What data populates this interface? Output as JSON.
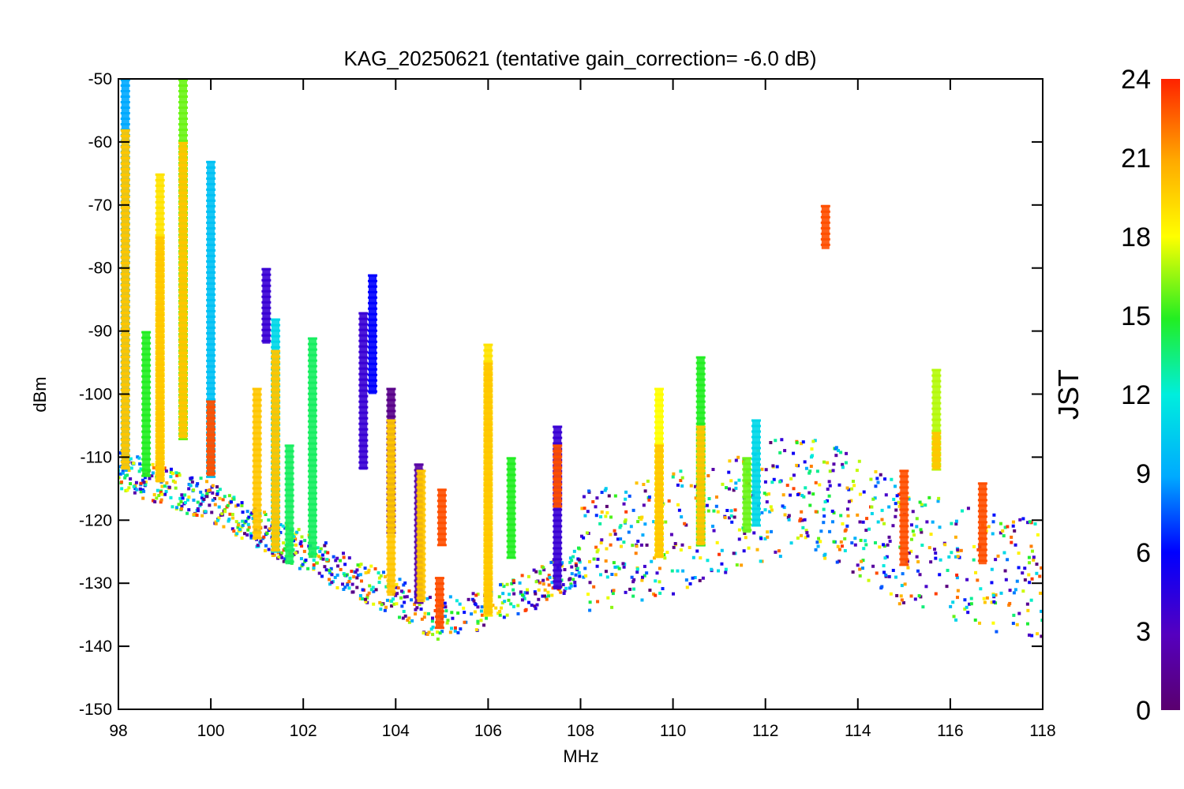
{
  "chart_data": {
    "type": "scatter",
    "title": "KAG_20250621 (tentative gain_correction= -6.0 dB)",
    "xlabel": "MHz",
    "ylabel": "dBm",
    "xlim": [
      98,
      118
    ],
    "ylim": [
      -150,
      -50
    ],
    "x_ticks": [
      {
        "value": 98,
        "label": "98"
      },
      {
        "value": 100,
        "label": "100"
      },
      {
        "value": 102,
        "label": "102"
      },
      {
        "value": 104,
        "label": "104"
      },
      {
        "value": 106,
        "label": "106"
      },
      {
        "value": 108,
        "label": "108"
      },
      {
        "value": 110,
        "label": "110"
      },
      {
        "value": 112,
        "label": "112"
      },
      {
        "value": 114,
        "label": "114"
      },
      {
        "value": 116,
        "label": "116"
      },
      {
        "value": 118,
        "label": "118"
      }
    ],
    "y_ticks": [
      {
        "value": -50,
        "label": "-50"
      },
      {
        "value": -60,
        "label": "-60"
      },
      {
        "value": -70,
        "label": "-70"
      },
      {
        "value": -80,
        "label": "-80"
      },
      {
        "value": -90,
        "label": "-90"
      },
      {
        "value": -100,
        "label": "-100"
      },
      {
        "value": -110,
        "label": "-110"
      },
      {
        "value": -120,
        "label": "-120"
      },
      {
        "value": -130,
        "label": "-130"
      },
      {
        "value": -140,
        "label": "-140"
      },
      {
        "value": -150,
        "label": "-150"
      }
    ],
    "grid": false,
    "colorbar": {
      "title": "JST",
      "range": [
        0,
        24
      ],
      "colormap": "rainbow",
      "ticks": [
        {
          "value": 0,
          "label": "0"
        },
        {
          "value": 3,
          "label": "3"
        },
        {
          "value": 6,
          "label": "6"
        },
        {
          "value": 9,
          "label": "9"
        },
        {
          "value": 12,
          "label": "12"
        },
        {
          "value": 15,
          "label": "15"
        },
        {
          "value": 18,
          "label": "18"
        },
        {
          "value": 21,
          "label": "21"
        },
        {
          "value": 24,
          "label": "24"
        }
      ]
    },
    "noise_floor": [
      {
        "x": 98.0,
        "y": -113
      },
      {
        "x": 100.0,
        "y": -118
      },
      {
        "x": 102.0,
        "y": -126
      },
      {
        "x": 104.0,
        "y": -133
      },
      {
        "x": 104.9,
        "y": -137
      },
      {
        "x": 105.2,
        "y": -136
      },
      {
        "x": 106.0,
        "y": -135
      },
      {
        "x": 107.0,
        "y": -132
      },
      {
        "x": 108.0,
        "y": -128
      },
      {
        "x": 109.0,
        "y": -127
      },
      {
        "x": 110.0,
        "y": -125
      },
      {
        "x": 111.0,
        "y": -123
      },
      {
        "x": 112.0,
        "y": -120
      },
      {
        "x": 113.0,
        "y": -118
      },
      {
        "x": 114.0,
        "y": -123
      },
      {
        "x": 115.0,
        "y": -127
      },
      {
        "x": 116.0,
        "y": -129
      },
      {
        "x": 117.0,
        "y": -131
      },
      {
        "x": 118.0,
        "y": -132
      }
    ],
    "peaks": [
      {
        "x": 98.15,
        "y_top": -50,
        "y_bottom": -112,
        "jst": 9
      },
      {
        "x": 98.15,
        "y_top": -58,
        "y_bottom": -112,
        "jst": 20
      },
      {
        "x": 98.6,
        "y_top": -90,
        "y_bottom": -113,
        "jst": 15
      },
      {
        "x": 98.9,
        "y_top": -65,
        "y_bottom": -114,
        "jst": 19
      },
      {
        "x": 98.9,
        "y_top": -75,
        "y_bottom": -114,
        "jst": 20
      },
      {
        "x": 99.4,
        "y_top": -50,
        "y_bottom": -107,
        "jst": 16
      },
      {
        "x": 99.4,
        "y_top": -60,
        "y_bottom": -107,
        "jst": 20
      },
      {
        "x": 100.0,
        "y_top": -63,
        "y_bottom": -113,
        "jst": 10
      },
      {
        "x": 100.0,
        "y_top": -101,
        "y_bottom": -113,
        "jst": 23
      },
      {
        "x": 101.0,
        "y_top": -99,
        "y_bottom": -123,
        "jst": 20
      },
      {
        "x": 101.2,
        "y_top": -80,
        "y_bottom": -92,
        "jst": 4
      },
      {
        "x": 101.4,
        "y_top": -88,
        "y_bottom": -125,
        "jst": 11
      },
      {
        "x": 101.4,
        "y_top": -93,
        "y_bottom": -125,
        "jst": 20
      },
      {
        "x": 101.7,
        "y_top": -108,
        "y_bottom": -127,
        "jst": 14
      },
      {
        "x": 102.2,
        "y_top": -91,
        "y_bottom": -126,
        "jst": 14
      },
      {
        "x": 103.3,
        "y_top": -87,
        "y_bottom": -112,
        "jst": 4
      },
      {
        "x": 103.5,
        "y_top": -81,
        "y_bottom": -100,
        "jst": 6
      },
      {
        "x": 103.9,
        "y_top": -99,
        "y_bottom": -122,
        "jst": 1
      },
      {
        "x": 103.9,
        "y_top": -104,
        "y_bottom": -132,
        "jst": 20
      },
      {
        "x": 104.5,
        "y_top": -111,
        "y_bottom": -133,
        "jst": 2
      },
      {
        "x": 104.55,
        "y_top": -112,
        "y_bottom": -133,
        "jst": 20
      },
      {
        "x": 105.0,
        "y_top": -115,
        "y_bottom": -124,
        "jst": 23
      },
      {
        "x": 104.95,
        "y_top": -129,
        "y_bottom": -137,
        "jst": 23
      },
      {
        "x": 106.0,
        "y_top": -92,
        "y_bottom": -135,
        "jst": 19
      },
      {
        "x": 106.0,
        "y_top": -95,
        "y_bottom": -135,
        "jst": 20
      },
      {
        "x": 106.5,
        "y_top": -110,
        "y_bottom": -126,
        "jst": 15
      },
      {
        "x": 107.5,
        "y_top": -105,
        "y_bottom": -131,
        "jst": 4
      },
      {
        "x": 107.5,
        "y_top": -108,
        "y_bottom": -118,
        "jst": 23
      },
      {
        "x": 109.7,
        "y_top": -99,
        "y_bottom": -126,
        "jst": 18
      },
      {
        "x": 109.7,
        "y_top": -108,
        "y_bottom": -126,
        "jst": 20
      },
      {
        "x": 110.6,
        "y_top": -94,
        "y_bottom": -124,
        "jst": 15
      },
      {
        "x": 110.6,
        "y_top": -105,
        "y_bottom": -124,
        "jst": 20
      },
      {
        "x": 111.6,
        "y_top": -110,
        "y_bottom": -122,
        "jst": 16
      },
      {
        "x": 111.8,
        "y_top": -104,
        "y_bottom": -121,
        "jst": 11
      },
      {
        "x": 113.3,
        "y_top": -70,
        "y_bottom": -77,
        "jst": 23
      },
      {
        "x": 115.0,
        "y_top": -112,
        "y_bottom": -127,
        "jst": 23
      },
      {
        "x": 115.7,
        "y_top": -96,
        "y_bottom": -112,
        "jst": 17
      },
      {
        "x": 115.7,
        "y_top": -106,
        "y_bottom": -112,
        "jst": 20
      },
      {
        "x": 116.7,
        "y_top": -114,
        "y_bottom": -127,
        "jst": 23
      }
    ]
  }
}
